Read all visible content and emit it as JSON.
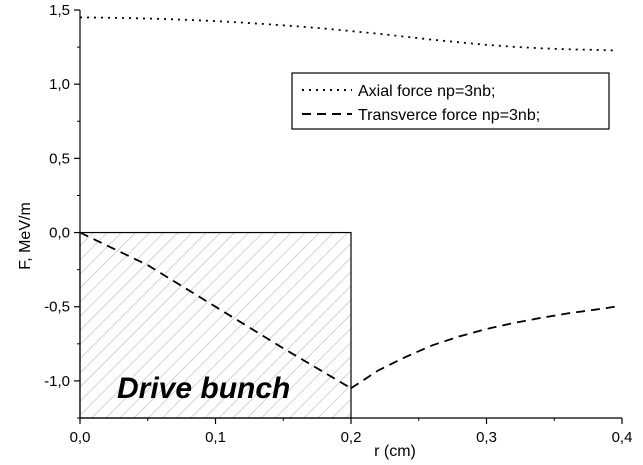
{
  "chart_data": {
    "type": "line",
    "xlabel": "r (cm)",
    "ylabel": "F, MeV/m",
    "xlim": [
      0.0,
      0.4
    ],
    "ylim": [
      -1.25,
      1.5
    ],
    "xticks": [
      0.0,
      0.1,
      0.2,
      0.3,
      0.4
    ],
    "yticks": [
      -1.0,
      -0.5,
      0.0,
      0.5,
      1.0,
      1.5
    ],
    "xtick_labels": [
      "0,0",
      "0,1",
      "0,2",
      "0,3",
      "0,4"
    ],
    "ytick_labels": [
      "-1,0",
      "-0,5",
      "0,0",
      "0,5",
      "1,0",
      "1,5"
    ],
    "grid": false,
    "legend_position": "top-right",
    "series": [
      {
        "name": "Axial force np=3nb;",
        "style": "dotted",
        "color": "#000000",
        "x": [
          0.0,
          0.02,
          0.04,
          0.06,
          0.08,
          0.1,
          0.12,
          0.14,
          0.16,
          0.18,
          0.2,
          0.22,
          0.24,
          0.26,
          0.28,
          0.3,
          0.32,
          0.34,
          0.36,
          0.38,
          0.395
        ],
        "y": [
          1.45,
          1.448,
          1.445,
          1.44,
          1.433,
          1.425,
          1.415,
          1.403,
          1.39,
          1.375,
          1.358,
          1.34,
          1.32,
          1.3,
          1.282,
          1.265,
          1.252,
          1.242,
          1.235,
          1.231,
          1.228
        ]
      },
      {
        "name": "Transverce force np=3nb;",
        "style": "dashed",
        "color": "#000000",
        "segments": [
          {
            "x": [
              0.0,
              0.05,
              0.1,
              0.15,
              0.2
            ],
            "y": [
              0.0,
              -0.22,
              -0.5,
              -0.78,
              -1.05
            ]
          },
          {
            "x": [
              0.2,
              0.22,
              0.24,
              0.26,
              0.28,
              0.3,
              0.32,
              0.34,
              0.36,
              0.38,
              0.395
            ],
            "y": [
              -1.05,
              -0.93,
              -0.84,
              -0.76,
              -0.7,
              -0.65,
              -0.61,
              -0.575,
              -0.545,
              -0.52,
              -0.5
            ]
          }
        ]
      }
    ],
    "annotations": [
      {
        "text": "Drive bunch",
        "region": {
          "x": [
            0.0,
            0.2
          ],
          "y": [
            -1.25,
            0.0
          ]
        },
        "fill": "hatched"
      }
    ]
  }
}
